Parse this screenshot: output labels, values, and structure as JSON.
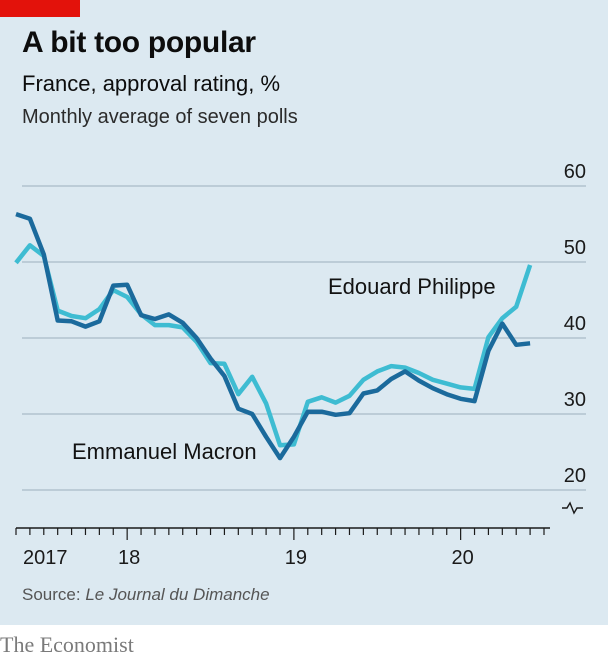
{
  "chart_data": {
    "type": "line",
    "title": "A bit too popular",
    "subtitle": "France, approval rating, %",
    "note": "Monthly average of seven polls",
    "source_prefix": "Source: ",
    "source_name": "Le Journal du Dimanche",
    "brand": "The Economist",
    "ylim": [
      20,
      60
    ],
    "y_ticks": [
      20,
      30,
      40,
      50,
      60
    ],
    "y_tick_labels": [
      "20",
      "30",
      "40",
      "50",
      "60"
    ],
    "x_start": "2017-05",
    "x_end": "2020-07",
    "x_labels": [
      {
        "label": "2017",
        "date": "2017-05"
      },
      {
        "label": "18",
        "date": "2018-01"
      },
      {
        "label": "19",
        "date": "2019-01"
      },
      {
        "label": "20",
        "date": "2020-01"
      }
    ],
    "grid": true,
    "broken_axis": true,
    "series": [
      {
        "name": "Emmanuel Macron",
        "color": "#1b6a9c",
        "x": [
          "2017-05",
          "2017-06",
          "2017-07",
          "2017-08",
          "2017-09",
          "2017-10",
          "2017-11",
          "2017-12",
          "2018-01",
          "2018-02",
          "2018-03",
          "2018-04",
          "2018-05",
          "2018-06",
          "2018-07",
          "2018-08",
          "2018-09",
          "2018-10",
          "2018-11",
          "2018-12",
          "2019-01",
          "2019-02",
          "2019-03",
          "2019-04",
          "2019-05",
          "2019-06",
          "2019-07",
          "2019-08",
          "2019-09",
          "2019-10",
          "2019-11",
          "2019-12",
          "2020-01",
          "2020-02",
          "2020-03",
          "2020-04",
          "2020-05",
          "2020-06",
          "2020-07"
        ],
        "values": [
          56.3,
          55.7,
          51,
          42.3,
          42.2,
          41.5,
          42.2,
          46.9,
          47,
          43,
          42.5,
          43.1,
          42,
          40,
          37.3,
          35,
          30.7,
          30,
          27,
          24.2,
          27,
          30.3,
          30.3,
          29.9,
          30.1,
          32.7,
          33.1,
          34.6,
          35.6,
          34.4,
          33.4,
          32.6,
          32,
          31.7,
          38.3,
          41.9,
          39.1,
          39.3,
          null
        ]
      },
      {
        "name": "Edouard Philippe",
        "color": "#3ebcd2",
        "x": [
          "2017-05",
          "2017-06",
          "2017-07",
          "2017-08",
          "2017-09",
          "2017-10",
          "2017-11",
          "2017-12",
          "2018-01",
          "2018-02",
          "2018-03",
          "2018-04",
          "2018-05",
          "2018-06",
          "2018-07",
          "2018-08",
          "2018-09",
          "2018-10",
          "2018-11",
          "2018-12",
          "2019-01",
          "2019-02",
          "2019-03",
          "2019-04",
          "2019-05",
          "2019-06",
          "2019-07",
          "2019-08",
          "2019-09",
          "2019-10",
          "2019-11",
          "2019-12",
          "2020-01",
          "2020-02",
          "2020-03",
          "2020-04",
          "2020-05",
          "2020-06",
          "2020-07"
        ],
        "values": [
          49.9,
          52.2,
          50.8,
          43.6,
          42.9,
          42.6,
          43.8,
          46.3,
          45.4,
          43.1,
          41.7,
          41.7,
          41.4,
          39.5,
          36.7,
          36.6,
          32.6,
          34.9,
          31.4,
          25.9,
          26,
          31.6,
          32.2,
          31.5,
          32.4,
          34.5,
          35.6,
          36.3,
          36.1,
          35.4,
          34.5,
          34,
          33.5,
          33.3,
          40.1,
          42.6,
          44.1,
          49.6,
          null
        ]
      }
    ]
  }
}
